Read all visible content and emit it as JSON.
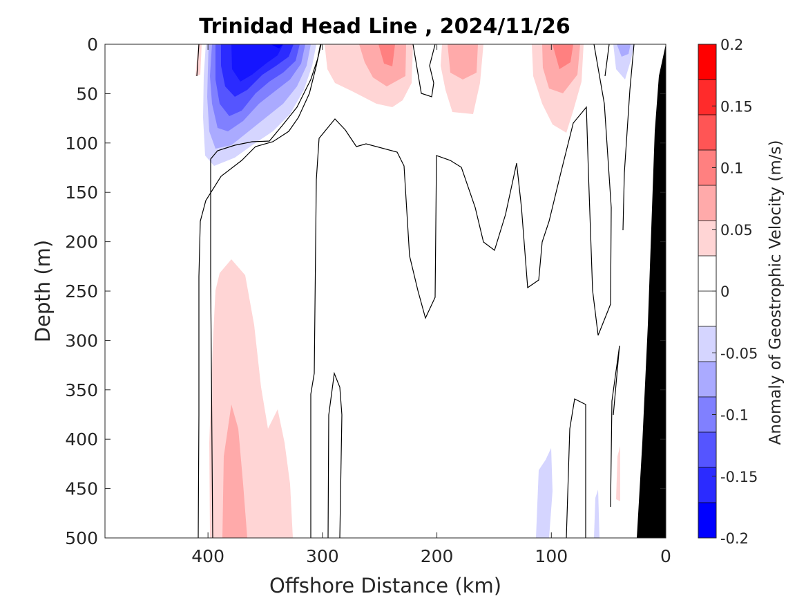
{
  "chart_data": {
    "type": "contour",
    "title": "Trinidad Head Line , 2024/11/26",
    "xlabel": "Offshore Distance (km)",
    "ylabel": "Depth (m)",
    "xlim": [
      490,
      0
    ],
    "ylim": [
      0,
      500
    ],
    "x_ticks": [
      "400",
      "300",
      "200",
      "100",
      "0"
    ],
    "y_ticks": [
      "0",
      "50",
      "100",
      "150",
      "200",
      "250",
      "300",
      "350",
      "400",
      "450",
      "500"
    ],
    "colorbar": {
      "label": "Anomaly of Geostrophic Velocity (m/s)",
      "range": [
        -0.2,
        0.2
      ],
      "ticks": [
        "0.2",
        "0.15",
        "0.1",
        "0.05",
        "0",
        "-0.05",
        "-0.1",
        "-0.15",
        "-0.2"
      ],
      "levels": [
        0.2,
        0.175,
        0.15,
        0.125,
        0.1,
        0.075,
        0.05,
        0.025,
        0,
        -0.025,
        -0.05,
        -0.075,
        -0.1,
        -0.125,
        -0.15,
        -0.175
      ],
      "colors": [
        "#ff0000",
        "#ff2b2b",
        "#ff5555",
        "#ff8080",
        "#ffaaaa",
        "#ffd5d5",
        "#ffffff",
        "#ffffff",
        "#d5d5ff",
        "#aaaaff",
        "#8080ff",
        "#5555ff",
        "#2b2bff",
        "#0000ff"
      ]
    },
    "features": [
      {
        "name": "negative anomaly core",
        "x_range_km": [
          290,
          400
        ],
        "depth_range_m": [
          0,
          125
        ],
        "min_value": -0.175
      },
      {
        "name": "positive surface anomaly",
        "x_range_km": [
          235,
          310
        ],
        "depth_range_m": [
          0,
          65
        ],
        "max_value": 0.075
      },
      {
        "name": "positive surface anomaly",
        "x_range_km": [
          165,
          225
        ],
        "depth_range_m": [
          0,
          70
        ],
        "max_value": 0.075
      },
      {
        "name": "positive surface anomaly",
        "x_range_km": [
          75,
          135
        ],
        "depth_range_m": [
          0,
          90
        ],
        "max_value": 0.075
      },
      {
        "name": "positive deep anomaly",
        "x_range_km": [
          325,
          400
        ],
        "depth_range_m": [
          215,
          500
        ],
        "max_value": 0.05
      },
      {
        "name": "weak negative deep anomaly",
        "x_range_km": [
          95,
          120
        ],
        "depth_range_m": [
          410,
          500
        ],
        "min_value": -0.025
      },
      {
        "name": "bottom / shelf (no data)",
        "x_range_km": [
          0,
          30
        ],
        "depth_range_m": [
          0,
          500
        ]
      }
    ],
    "colors": {
      "axis": "#262626",
      "contour": "#000000",
      "land": "#000000"
    }
  }
}
